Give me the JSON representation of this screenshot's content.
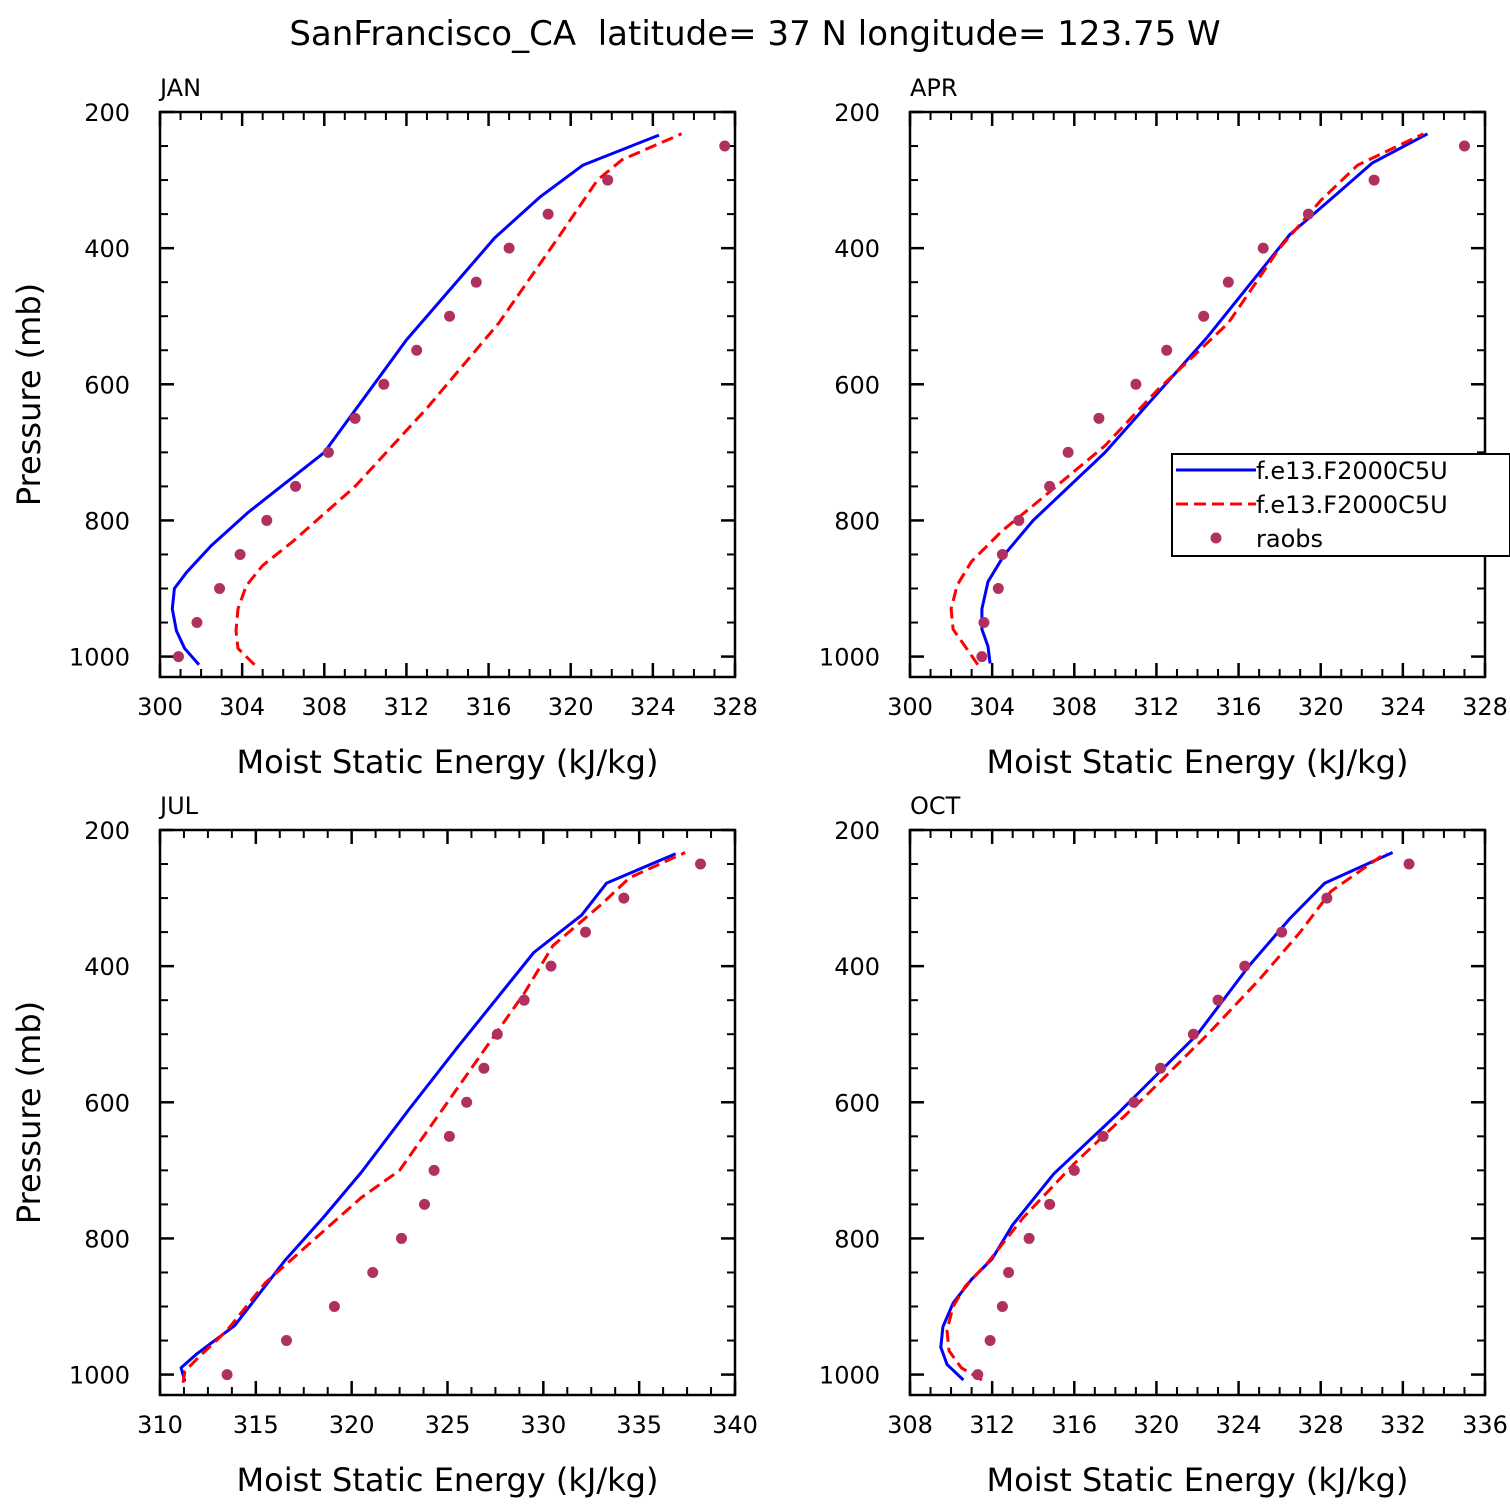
{
  "figure": {
    "title": "SanFrancisco_CA  latitude= 37 N longitude= 123.75 W"
  },
  "legend": {
    "entries": [
      {
        "label": "f.e13.F2000C5U",
        "style": "solid",
        "color": "#0000ff"
      },
      {
        "label": "f.e13.F2000C5U",
        "style": "dashed",
        "color": "#ff0000"
      },
      {
        "label": "raobs",
        "style": "marker",
        "color": "#b03060"
      }
    ]
  },
  "colors": {
    "model_solid": "#0000ff",
    "model_dashed": "#ff0000",
    "raobs": "#b03060"
  },
  "chart_data": [
    {
      "type": "line",
      "title": "JAN",
      "xlabel": "Moist Static Energy (kJ/kg)",
      "ylabel": "Pressure (mb)",
      "xlim": [
        300,
        328
      ],
      "xticks": [
        300,
        304,
        308,
        312,
        316,
        320,
        324,
        328
      ],
      "ylim": [
        200,
        1030
      ],
      "yticks": [
        200,
        400,
        600,
        800,
        1000
      ],
      "y_inverted": true,
      "series": [
        {
          "style": "solid",
          "color": "#0000ff",
          "points": [
            [
              301.9,
              1012
            ],
            [
              301.2,
              988
            ],
            [
              300.8,
              962
            ],
            [
              300.6,
              930
            ],
            [
              300.7,
              900
            ],
            [
              301.3,
              876
            ],
            [
              302.5,
              837
            ],
            [
              304.3,
              788
            ],
            [
              308.0,
              700
            ],
            [
              312.0,
              535
            ],
            [
              316.3,
              385
            ],
            [
              318.5,
              325
            ],
            [
              320.6,
              278
            ],
            [
              324.3,
              234
            ]
          ]
        },
        {
          "style": "dashed",
          "color": "#ff0000",
          "points": [
            [
              304.6,
              1012
            ],
            [
              304.2,
              1000
            ],
            [
              303.8,
              988
            ],
            [
              303.7,
              962
            ],
            [
              303.8,
              930
            ],
            [
              304.2,
              896
            ],
            [
              305.0,
              866
            ],
            [
              306.5,
              830
            ],
            [
              309.5,
              750
            ],
            [
              313.0,
              635
            ],
            [
              316.5,
              510
            ],
            [
              319.5,
              380
            ],
            [
              321.3,
              300
            ],
            [
              322.5,
              270
            ],
            [
              325.4,
              232
            ]
          ]
        },
        {
          "style": "marker",
          "color": "#b03060",
          "points": [
            [
              300.9,
              1000
            ],
            [
              301.8,
              950
            ],
            [
              302.9,
              900
            ],
            [
              303.9,
              850
            ],
            [
              305.2,
              800
            ],
            [
              306.6,
              750
            ],
            [
              308.2,
              700
            ],
            [
              309.5,
              650
            ],
            [
              310.9,
              600
            ],
            [
              312.5,
              550
            ],
            [
              314.1,
              500
            ],
            [
              315.4,
              450
            ],
            [
              317.0,
              400
            ],
            [
              318.9,
              350
            ],
            [
              321.8,
              300
            ],
            [
              327.5,
              250
            ]
          ]
        }
      ]
    },
    {
      "type": "line",
      "title": "APR",
      "xlabel": "Moist Static Energy (kJ/kg)",
      "ylabel": "",
      "xlim": [
        300,
        328
      ],
      "xticks": [
        300,
        304,
        308,
        312,
        316,
        320,
        324,
        328
      ],
      "ylim": [
        200,
        1030
      ],
      "yticks": [
        200,
        400,
        600,
        800,
        1000
      ],
      "y_inverted": true,
      "series": [
        {
          "style": "solid",
          "color": "#0000ff",
          "points": [
            [
              303.9,
              1010
            ],
            [
              303.8,
              985
            ],
            [
              303.5,
              960
            ],
            [
              303.5,
              930
            ],
            [
              303.8,
              890
            ],
            [
              304.6,
              850
            ],
            [
              306.0,
              800
            ],
            [
              309.5,
              700
            ],
            [
              314.5,
              530
            ],
            [
              318.5,
              380
            ],
            [
              320.8,
              320
            ],
            [
              322.5,
              275
            ],
            [
              325.2,
              232
            ]
          ]
        },
        {
          "style": "dashed",
          "color": "#ff0000",
          "points": [
            [
              303.3,
              1012
            ],
            [
              302.8,
              990
            ],
            [
              302.1,
              960
            ],
            [
              302.0,
              930
            ],
            [
              302.3,
              895
            ],
            [
              303.0,
              860
            ],
            [
              304.5,
              815
            ],
            [
              306.0,
              778
            ],
            [
              309.5,
              690
            ],
            [
              312.0,
              610
            ],
            [
              315.5,
              510
            ],
            [
              318.0,
              400
            ],
            [
              320.0,
              330
            ],
            [
              321.8,
              278
            ],
            [
              325.0,
              232
            ]
          ]
        },
        {
          "style": "marker",
          "color": "#b03060",
          "points": [
            [
              303.5,
              1000
            ],
            [
              303.6,
              950
            ],
            [
              304.3,
              900
            ],
            [
              304.5,
              850
            ],
            [
              305.3,
              800
            ],
            [
              306.8,
              750
            ],
            [
              307.7,
              700
            ],
            [
              309.2,
              650
            ],
            [
              311.0,
              600
            ],
            [
              312.5,
              550
            ],
            [
              314.3,
              500
            ],
            [
              315.5,
              450
            ],
            [
              317.2,
              400
            ],
            [
              319.4,
              350
            ],
            [
              322.6,
              300
            ],
            [
              327.0,
              250
            ]
          ]
        }
      ]
    },
    {
      "type": "line",
      "title": "JUL",
      "xlabel": "Moist Static Energy (kJ/kg)",
      "ylabel": "Pressure (mb)",
      "xlim": [
        310,
        340
      ],
      "xticks": [
        310,
        315,
        320,
        325,
        330,
        335,
        340
      ],
      "ylim": [
        200,
        1030
      ],
      "yticks": [
        200,
        400,
        600,
        800,
        1000
      ],
      "y_inverted": true,
      "series": [
        {
          "style": "solid",
          "color": "#0000ff",
          "points": [
            [
              311.3,
              1010
            ],
            [
              311.1,
              990
            ],
            [
              311.9,
              970
            ],
            [
              313.9,
              928
            ],
            [
              316.5,
              833
            ],
            [
              318.5,
              770
            ],
            [
              320.5,
              703
            ],
            [
              323.0,
              610
            ],
            [
              325.5,
              520
            ],
            [
              329.5,
              380
            ],
            [
              332.0,
              325
            ],
            [
              333.3,
              278
            ],
            [
              336.9,
              235
            ]
          ]
        },
        {
          "style": "dashed",
          "color": "#ff0000",
          "points": [
            [
              311.2,
              1012
            ],
            [
              311.3,
              995
            ],
            [
              312.0,
              975
            ],
            [
              313.5,
              935
            ],
            [
              315.5,
              865
            ],
            [
              317.5,
              815
            ],
            [
              320.5,
              740
            ],
            [
              322.5,
              700
            ],
            [
              324.5,
              620
            ],
            [
              327.0,
              520
            ],
            [
              329.0,
              440
            ],
            [
              330.5,
              370
            ],
            [
              333.0,
              310
            ],
            [
              334.5,
              270
            ],
            [
              337.4,
              233
            ]
          ]
        },
        {
          "style": "marker",
          "color": "#b03060",
          "points": [
            [
              313.5,
              1000
            ],
            [
              316.6,
              950
            ],
            [
              319.1,
              900
            ],
            [
              321.1,
              850
            ],
            [
              322.6,
              800
            ],
            [
              323.8,
              750
            ],
            [
              324.3,
              700
            ],
            [
              325.1,
              650
            ],
            [
              326.0,
              600
            ],
            [
              326.9,
              550
            ],
            [
              327.6,
              500
            ],
            [
              329.0,
              450
            ],
            [
              330.4,
              400
            ],
            [
              332.2,
              350
            ],
            [
              334.2,
              300
            ],
            [
              338.2,
              250
            ]
          ]
        }
      ]
    },
    {
      "type": "line",
      "title": "OCT",
      "xlabel": "Moist Static Energy (kJ/kg)",
      "ylabel": "",
      "xlim": [
        308,
        336
      ],
      "xticks": [
        308,
        312,
        316,
        320,
        324,
        328,
        332,
        336
      ],
      "ylim": [
        200,
        1030
      ],
      "yticks": [
        200,
        400,
        600,
        800,
        1000
      ],
      "y_inverted": true,
      "series": [
        {
          "style": "solid",
          "color": "#0000ff",
          "points": [
            [
              310.6,
              1008
            ],
            [
              309.8,
              985
            ],
            [
              309.5,
              960
            ],
            [
              309.6,
              930
            ],
            [
              310.1,
              895
            ],
            [
              311.0,
              860
            ],
            [
              312.0,
              830
            ],
            [
              313.0,
              780
            ],
            [
              315.0,
              705
            ],
            [
              318.0,
              620
            ],
            [
              322.0,
              500
            ],
            [
              324.5,
              400
            ],
            [
              326.5,
              330
            ],
            [
              328.2,
              278
            ],
            [
              331.5,
              233
            ]
          ]
        },
        {
          "style": "dashed",
          "color": "#ff0000",
          "points": [
            [
              311.5,
              1008
            ],
            [
              310.5,
              990
            ],
            [
              309.9,
              965
            ],
            [
              309.8,
              935
            ],
            [
              310.1,
              900
            ],
            [
              310.7,
              870
            ],
            [
              311.8,
              835
            ],
            [
              313.5,
              770
            ],
            [
              316.0,
              690
            ],
            [
              319.5,
              590
            ],
            [
              322.5,
              500
            ],
            [
              325.0,
              420
            ],
            [
              327.0,
              350
            ],
            [
              328.5,
              290
            ],
            [
              331.2,
              233
            ]
          ]
        },
        {
          "style": "marker",
          "color": "#b03060",
          "points": [
            [
              311.3,
              1000
            ],
            [
              311.9,
              950
            ],
            [
              312.5,
              900
            ],
            [
              312.8,
              850
            ],
            [
              313.8,
              800
            ],
            [
              314.8,
              750
            ],
            [
              316.0,
              700
            ],
            [
              317.4,
              650
            ],
            [
              318.9,
              600
            ],
            [
              320.2,
              550
            ],
            [
              321.8,
              500
            ],
            [
              323.0,
              450
            ],
            [
              324.3,
              400
            ],
            [
              326.1,
              350
            ],
            [
              328.3,
              300
            ],
            [
              332.3,
              250
            ]
          ]
        }
      ]
    }
  ]
}
